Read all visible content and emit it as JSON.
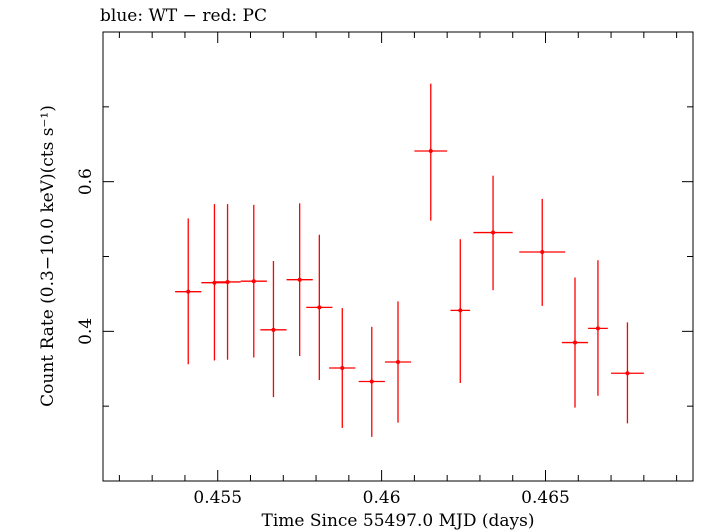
{
  "chart_data": {
    "type": "scatter",
    "title": "blue: WT − red: PC",
    "xlabel": "Time Since 55497.0 MJD (days)",
    "ylabel": "Count Rate (0.3−10.0 keV)(cts s⁻¹)",
    "xlim": [
      0.4515,
      0.4695
    ],
    "ylim": [
      0.2,
      0.8
    ],
    "x_ticks_major": [
      0.455,
      0.46,
      0.465
    ],
    "x_tick_labels": [
      "0.455",
      "0.46",
      "0.465"
    ],
    "y_ticks_major": [
      0.4,
      0.6
    ],
    "y_tick_labels": [
      "0.4",
      "0.6"
    ],
    "grid": false,
    "series": [
      {
        "color": "#ff0000",
        "points": [
          {
            "x": 0.4541,
            "y": 0.453,
            "xerr": 0.0004,
            "yerr_low": 0.097,
            "yerr_high": 0.098
          },
          {
            "x": 0.4549,
            "y": 0.465,
            "xerr": 0.0004,
            "yerr_low": 0.104,
            "yerr_high": 0.105
          },
          {
            "x": 0.4553,
            "y": 0.466,
            "xerr": 0.0004,
            "yerr_low": 0.104,
            "yerr_high": 0.104
          },
          {
            "x": 0.4561,
            "y": 0.467,
            "xerr": 0.0004,
            "yerr_low": 0.102,
            "yerr_high": 0.102
          },
          {
            "x": 0.4567,
            "y": 0.402,
            "xerr": 0.0004,
            "yerr_low": 0.09,
            "yerr_high": 0.092
          },
          {
            "x": 0.4575,
            "y": 0.469,
            "xerr": 0.0004,
            "yerr_low": 0.102,
            "yerr_high": 0.102
          },
          {
            "x": 0.4581,
            "y": 0.432,
            "xerr": 0.0004,
            "yerr_low": 0.097,
            "yerr_high": 0.097
          },
          {
            "x": 0.4588,
            "y": 0.351,
            "xerr": 0.0004,
            "yerr_low": 0.08,
            "yerr_high": 0.08
          },
          {
            "x": 0.4597,
            "y": 0.333,
            "xerr": 0.0004,
            "yerr_low": 0.074,
            "yerr_high": 0.073
          },
          {
            "x": 0.4605,
            "y": 0.359,
            "xerr": 0.0004,
            "yerr_low": 0.081,
            "yerr_high": 0.081
          },
          {
            "x": 0.4615,
            "y": 0.641,
            "xerr": 0.0005,
            "yerr_low": 0.093,
            "yerr_high": 0.09
          },
          {
            "x": 0.4624,
            "y": 0.428,
            "xerr": 0.0003,
            "yerr_low": 0.097,
            "yerr_high": 0.095
          },
          {
            "x": 0.4634,
            "y": 0.532,
            "xerr": 0.0006,
            "yerr_low": 0.077,
            "yerr_high": 0.076
          },
          {
            "x": 0.4649,
            "y": 0.506,
            "xerr": 0.0007,
            "yerr_low": 0.072,
            "yerr_high": 0.071
          },
          {
            "x": 0.4659,
            "y": 0.385,
            "xerr": 0.0004,
            "yerr_low": 0.087,
            "yerr_high": 0.087
          },
          {
            "x": 0.4666,
            "y": 0.404,
            "xerr": 0.0003,
            "yerr_low": 0.09,
            "yerr_high": 0.091
          },
          {
            "x": 0.4675,
            "y": 0.344,
            "xerr": 0.0005,
            "yerr_low": 0.067,
            "yerr_high": 0.068
          }
        ]
      }
    ]
  }
}
